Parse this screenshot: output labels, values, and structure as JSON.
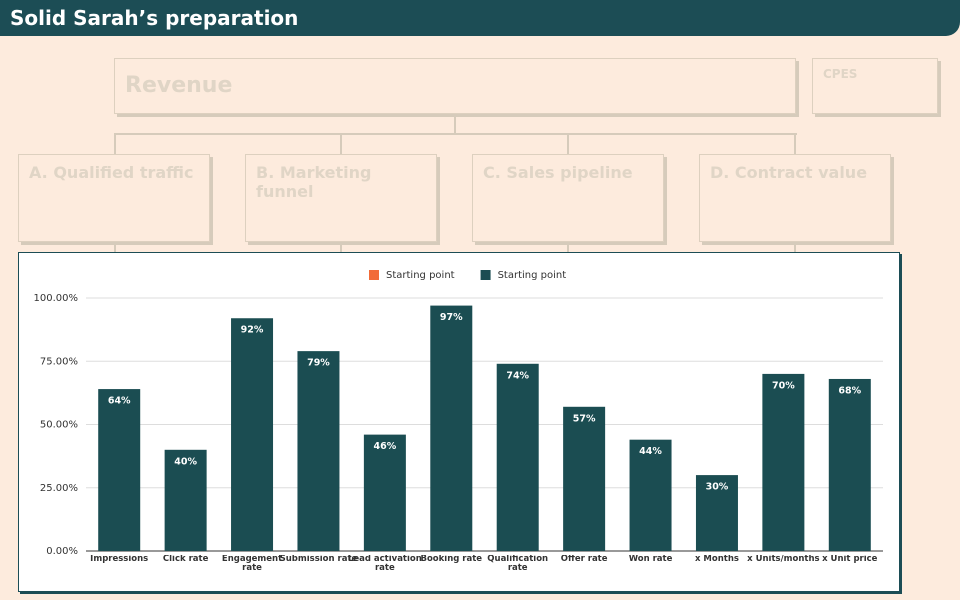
{
  "header": {
    "title": "Solid Sarah’s preparation"
  },
  "tree": {
    "root": "Revenue",
    "side": "CPES",
    "nodes": [
      "A. Qualified traffic",
      "B. Marketing funnel",
      "C. Sales pipeline",
      "D. Contract value"
    ]
  },
  "chart_data": {
    "type": "bar",
    "categories": [
      "Impressions",
      "Click rate",
      "Engagement rate",
      "Submission rate",
      "Lead activation rate",
      "Booking rate",
      "Qualification rate",
      "Offer rate",
      "Won rate",
      "x̄ Months",
      "x̄ Units/months",
      "x̄ Unit price"
    ],
    "series": [
      {
        "name": "Starting point",
        "color": "#f26b38",
        "values": [
          null,
          null,
          null,
          null,
          null,
          null,
          null,
          null,
          null,
          null,
          null,
          null
        ]
      },
      {
        "name": "Starting point",
        "color": "#1b4d52",
        "values": [
          64,
          40,
          92,
          79,
          46,
          97,
          74,
          57,
          44,
          30,
          70,
          68
        ],
        "value_labels": [
          "64%",
          "40%",
          "92%",
          "79%",
          "46%",
          "97%",
          "74%",
          "57%",
          "44%",
          "30%",
          "70%",
          "68%"
        ]
      }
    ],
    "ylim": [
      0,
      100
    ],
    "yticks": [
      {
        "value": 0,
        "label": "0.00%"
      },
      {
        "value": 25,
        "label": "25.00%"
      },
      {
        "value": 50,
        "label": "50.00%"
      },
      {
        "value": 75,
        "label": "75.00%"
      },
      {
        "value": 100,
        "label": "100.00%"
      }
    ],
    "grid": true,
    "legend": "top"
  }
}
